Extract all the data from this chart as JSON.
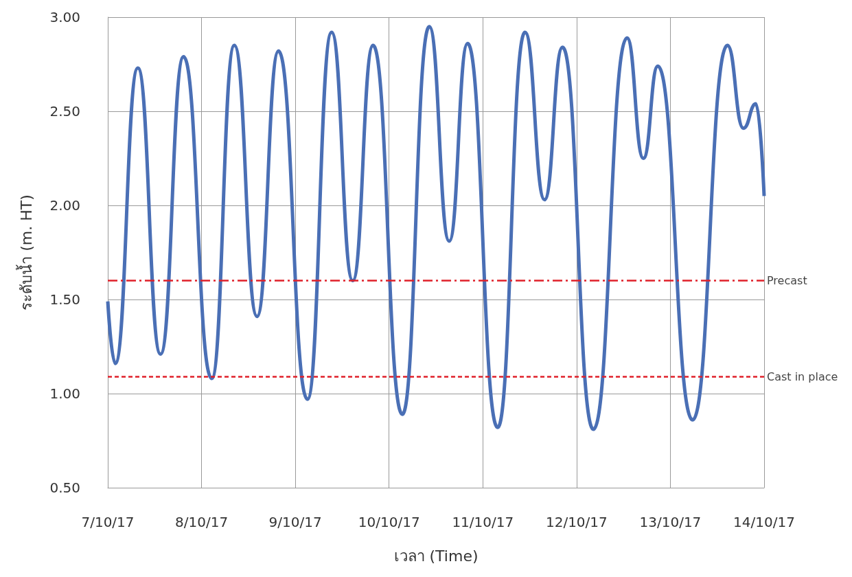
{
  "chart_data": {
    "type": "line",
    "xlabel": "เวลา (Time)",
    "ylabel": "ระดับน้ำ (m. HT)",
    "x": [
      "--10-07T00:00",
      "--10-07T01:54",
      "--10-07T07:42",
      "--10-07T13:30",
      "--10-07T19:24",
      "--10-08T02:36",
      "--10-08T08:24",
      "--10-08T14:12",
      "--10-08T19:42",
      "--10-09T03:06",
      "--10-09T09:18",
      "--10-09T14:42",
      "--10-09T19:54",
      "--10-10T03:24",
      "--10-10T10:18",
      "--10-10T15:24",
      "--10-10T20:06",
      "--10-11T03:48",
      "--10-11T10:48",
      "--10-11T15:48",
      "--10-11T20:24",
      "--10-12T04:18",
      "--10-12T12:54",
      "--10-12T17:06",
      "--10-12T20:48",
      "--10-13T05:42",
      "--10-13T14:36",
      "--10-13T18:42",
      "--10-13T21:54",
      "--10-14T00:00"
    ],
    "series": [
      {
        "color": "#4a6fb5",
        "values": [
          1.49,
          1.16,
          2.73,
          1.21,
          2.79,
          1.08,
          2.85,
          1.41,
          2.82,
          0.97,
          2.92,
          1.6,
          2.85,
          0.89,
          2.95,
          1.81,
          2.86,
          0.82,
          2.92,
          2.03,
          2.84,
          0.81,
          2.89,
          2.25,
          2.74,
          0.86,
          2.85,
          2.41,
          2.54,
          2.05
        ]
      }
    ],
    "xlim": [
      "--10-07",
      "--10-14"
    ],
    "xticks": [
      {
        "value": "--10-07",
        "label": "7/10/17"
      },
      {
        "value": "--10-08",
        "label": "8/10/17"
      },
      {
        "value": "--10-09",
        "label": "9/10/17"
      },
      {
        "value": "--10-10",
        "label": "10/10/17"
      },
      {
        "value": "--10-11",
        "label": "11/10/17"
      },
      {
        "value": "--10-12",
        "label": "12/10/17"
      },
      {
        "value": "--10-13",
        "label": "13/10/17"
      },
      {
        "value": "--10-14",
        "label": "14/10/17"
      }
    ],
    "ylim": [
      0.5,
      3.0
    ],
    "yticks": [
      {
        "value": 0.5,
        "label": "0.50"
      },
      {
        "value": 1.0,
        "label": "1.00"
      },
      {
        "value": 1.5,
        "label": "1.50"
      },
      {
        "value": 2.0,
        "label": "2.00"
      },
      {
        "value": 2.5,
        "label": "2.50"
      },
      {
        "value": 3.0,
        "label": "3.00"
      }
    ],
    "ref_lines": [
      {
        "axis": "y",
        "value": 1.6,
        "label": "Precast",
        "color": "#e0202a",
        "line_style": "dashdot"
      },
      {
        "axis": "y",
        "value": 1.09,
        "label": "Cast in place",
        "color": "#e0202a",
        "line_style": "dashed"
      }
    ],
    "grid": true,
    "marker": "none",
    "line_style": "solid"
  }
}
